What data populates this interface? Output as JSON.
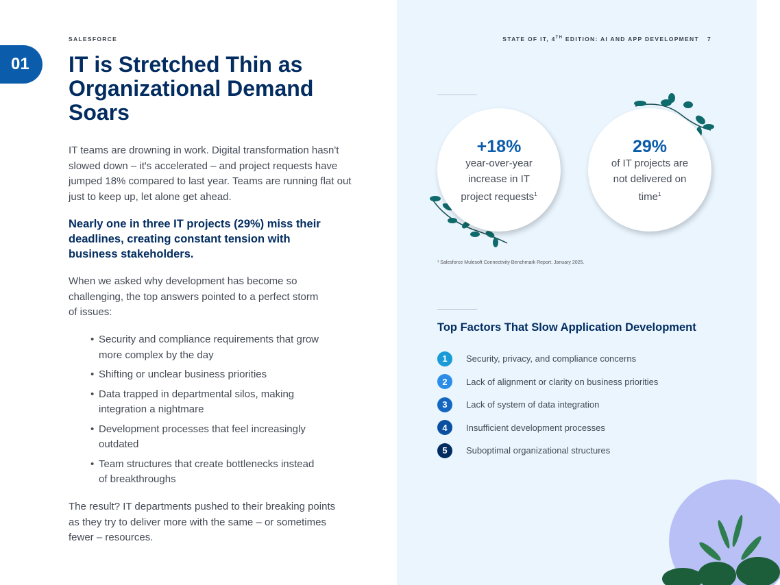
{
  "brand": "SALESFORCE",
  "section_number": "01",
  "title": "IT is Stretched Thin as Organizational Demand Soars",
  "intro": "IT teams are drowning in work. Digital transformation hasn't slowed down – it's accelerated – and project requests have jumped 18% compared to last year. Teams are running flat out just to keep up, let alone get ahead.",
  "highlight": "Nearly one in three IT projects (29%) miss their deadlines, creating constant tension with business stakeholders.",
  "lead_in": "When we asked why development has become so challenging, the top answers pointed to a perfect storm of issues:",
  "bullets": [
    "Security and compliance requirements that grow more complex by the day",
    "Shifting or unclear business priorities",
    "Data trapped in departmental silos, making integration a nightmare",
    "Development processes that feel increasingly outdated",
    "Team structures that create bottlenecks instead of breakthroughs"
  ],
  "conclusion": "The result? IT departments pushed to their breaking points as they try to deliver more with the same – or sometimes fewer – resources.",
  "header": {
    "title_pre": "STATE OF IT, 4",
    "title_sup": "TH",
    "title_post": " EDITION: AI AND APP DEVELOPMENT",
    "page": "7"
  },
  "stats": [
    {
      "value": "+18%",
      "desc": "year-over-year increase in IT project requests",
      "note": "1"
    },
    {
      "value": "29%",
      "desc": "of IT projects are not delivered on time",
      "note": "1"
    }
  ],
  "footnote": "¹ Salesforce Mulesoft Connectivity Benchmark Report, January 2025.",
  "factors_title": "Top Factors That Slow Application Development",
  "factors": [
    {
      "n": "1",
      "text": "Security, privacy, and compliance concerns",
      "color": "#1a9ad6"
    },
    {
      "n": "2",
      "text": "Lack of alignment or clarity on business priorities",
      "color": "#2b8de8"
    },
    {
      "n": "3",
      "text": "Lack of system of data integration",
      "color": "#1467c0"
    },
    {
      "n": "4",
      "text": "Insufficient development processes",
      "color": "#0b4fa0"
    },
    {
      "n": "5",
      "text": "Suboptimal organizational structures",
      "color": "#032d60"
    }
  ]
}
